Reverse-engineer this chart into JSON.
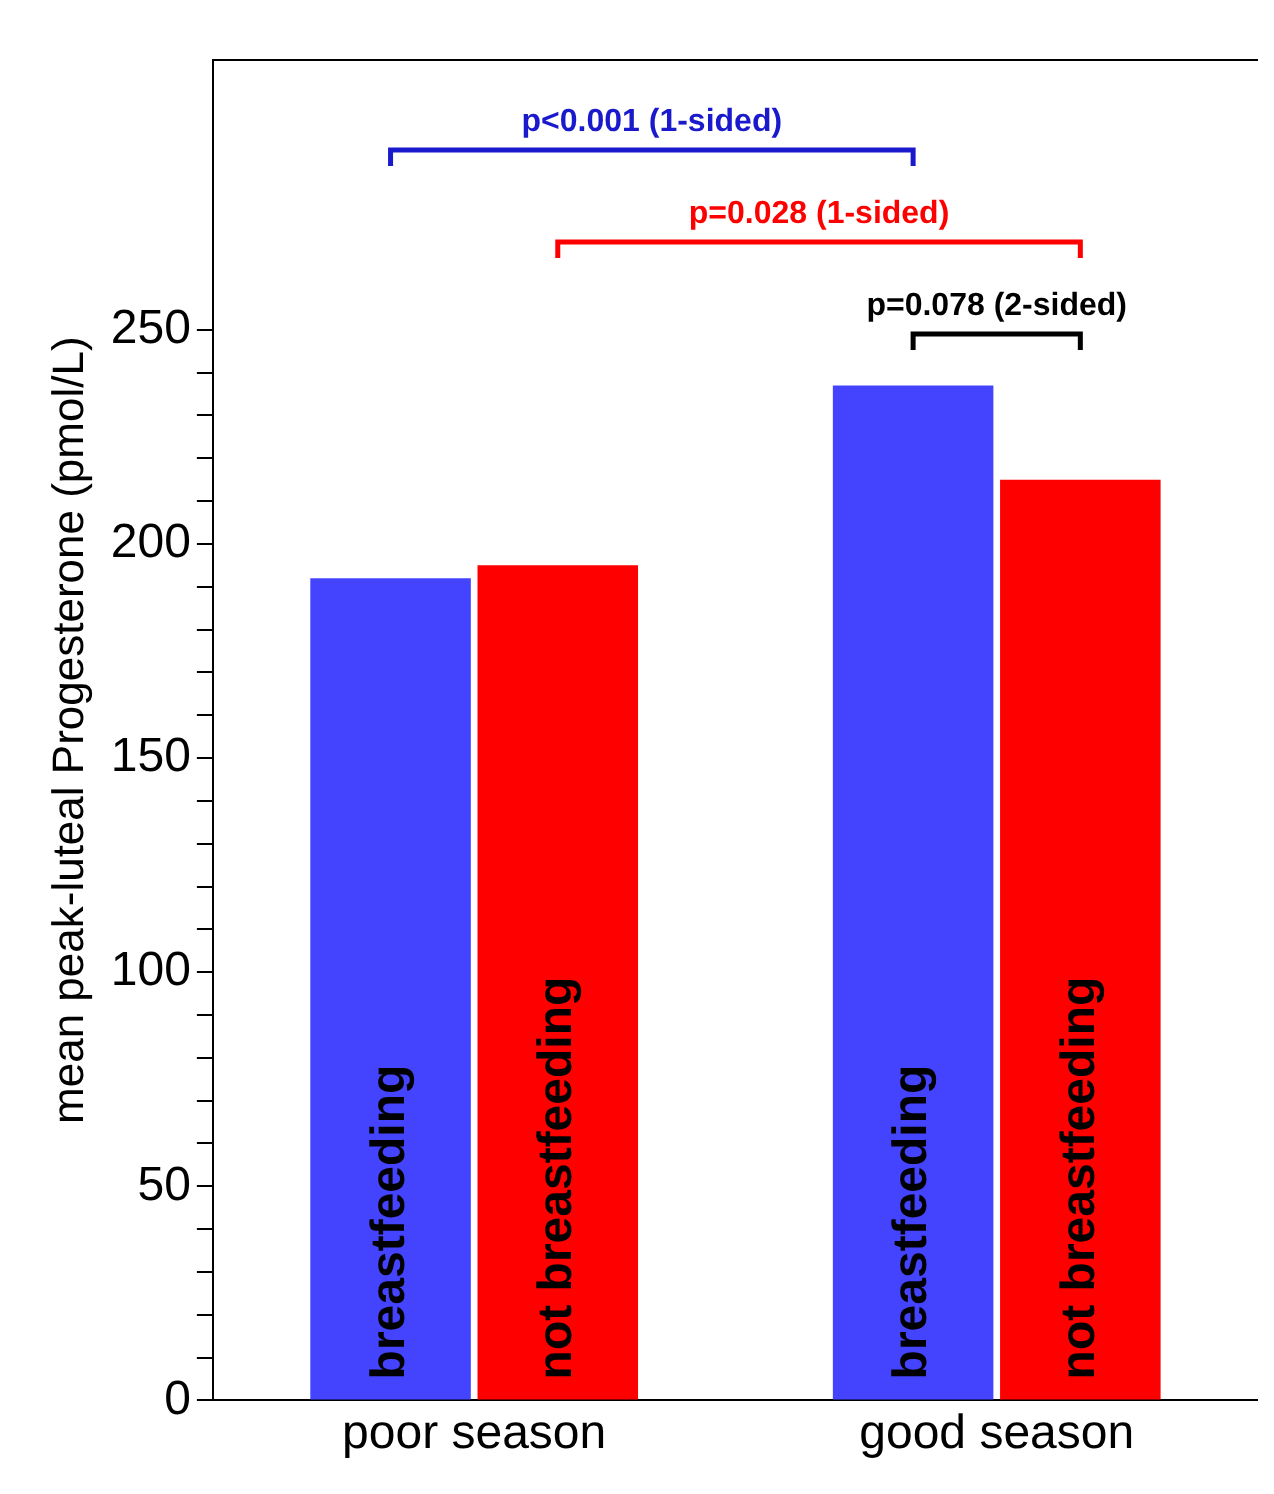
{
  "chart_data": {
    "type": "bar",
    "ylabel": "mean peak-luteal Progesterone (pmol/L)",
    "categories": [
      "poor season",
      "good season"
    ],
    "series": [
      {
        "name": "breastfeeding",
        "color": "#4444ff",
        "values": [
          192,
          237
        ]
      },
      {
        "name": "not breastfeeding",
        "color": "#ff0000",
        "values": [
          195,
          215
        ]
      }
    ],
    "ylim": [
      0,
      313
    ],
    "yticks": [
      0,
      {
        "value": 10,
        "label": null
      },
      {
        "value": 20,
        "label": null
      },
      {
        "value": 30,
        "label": null
      },
      {
        "value": 40,
        "label": null
      },
      50,
      {
        "value": 60,
        "label": null
      },
      {
        "value": 70,
        "label": null
      },
      {
        "value": 80,
        "label": null
      },
      {
        "value": 90,
        "label": null
      },
      100,
      {
        "value": 110,
        "label": null
      },
      {
        "value": 120,
        "label": null
      },
      {
        "value": 130,
        "label": null
      },
      {
        "value": 140,
        "label": null
      },
      150,
      {
        "value": 160,
        "label": null
      },
      {
        "value": 170,
        "label": null
      },
      {
        "value": 180,
        "label": null
      },
      {
        "value": 190,
        "label": null
      },
      200,
      {
        "value": 210,
        "label": null
      },
      {
        "value": 220,
        "label": null
      },
      {
        "value": 230,
        "label": null
      },
      {
        "value": 240,
        "label": null
      },
      250
    ],
    "annotations": [
      "p<0.001 (1-sided)",
      "p=0.028 (1-sided)",
      "p=0.078 (2-sided)"
    ],
    "legend": false,
    "grid": false
  }
}
